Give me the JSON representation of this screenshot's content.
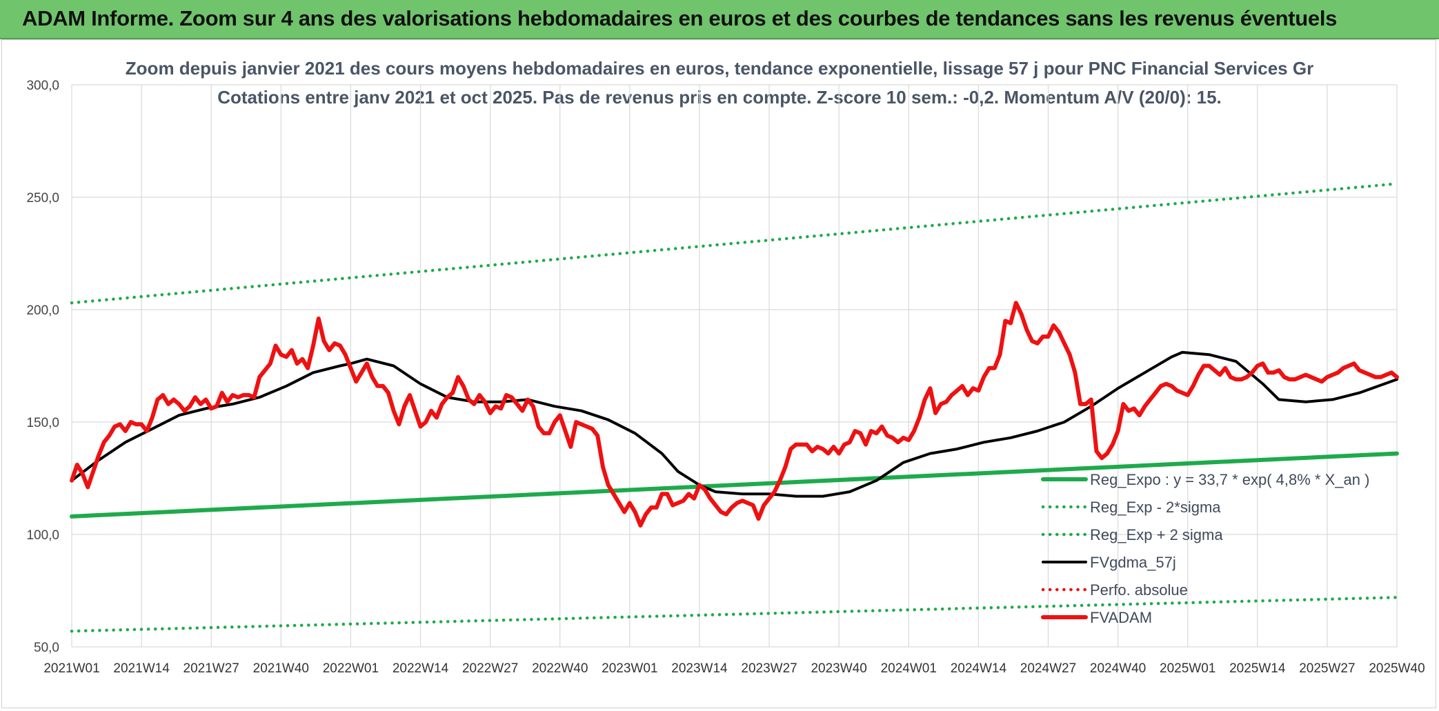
{
  "header": {
    "title": "ADAM Informe. Zoom sur 4 ans des valorisations hebdomadaires en euros et des courbes de tendances sans les revenus éventuels"
  },
  "chart_data": {
    "type": "line",
    "title": "Zoom depuis janvier 2021 des cours moyens hebdomadaires en euros, tendance exponentielle, lissage 57 j pour PNC Financial Services Gr",
    "subtitle": "Cotations entre janv 2021 et oct 2025. Pas de revenus pris en compte. Z-score 10 sem.: -0,2. Momentum A/V (20/0): 15.",
    "xlabel": "",
    "ylabel": "",
    "ylim": [
      50,
      300
    ],
    "yticks": [
      50,
      100,
      150,
      200,
      250,
      300
    ],
    "ytick_labels": [
      "50,0",
      "100,0",
      "150,0",
      "200,0",
      "250,0",
      "300,0"
    ],
    "x_range": [
      0,
      247
    ],
    "x_tick_positions": [
      0,
      13,
      26,
      39,
      52,
      65,
      78,
      91,
      104,
      117,
      130,
      143,
      156,
      169,
      182,
      195,
      208,
      221,
      234,
      247
    ],
    "x_tick_labels": [
      "2021W01",
      "2021W14",
      "2021W27",
      "2021W40",
      "2022W01",
      "2022W14",
      "2022W27",
      "2022W40",
      "2023W01",
      "2023W14",
      "2023W27",
      "2023W40",
      "2024W01",
      "2024W14",
      "2024W27",
      "2024W40",
      "2025W01",
      "2025W14",
      "2025W27",
      "2025W40"
    ],
    "grid": true,
    "legend_position": "bottom-right",
    "colors": {
      "green": "#1eaa4b",
      "black": "#000000",
      "red": "#ee1111"
    },
    "series": [
      {
        "name": "Reg_Expo : y = 33,7 * exp( 4,8% *  X_an )",
        "style": "solid-thick",
        "color": "#1eaa4b",
        "x": [
          0,
          247
        ],
        "values": [
          108,
          136
        ]
      },
      {
        "name": "Reg_Exp - 2*sigma",
        "style": "dotted",
        "color": "#1eaa4b",
        "x": [
          0,
          247
        ],
        "values": [
          57,
          72
        ]
      },
      {
        "name": "Reg_Exp + 2 sigma",
        "style": "dotted",
        "color": "#1eaa4b",
        "x": [
          0,
          247
        ],
        "values": [
          203,
          256
        ]
      },
      {
        "name": "FVgdma_57j",
        "style": "solid",
        "color": "#000000",
        "x": [
          0,
          5,
          10,
          15,
          20,
          25,
          30,
          35,
          40,
          45,
          50,
          52,
          55,
          60,
          65,
          70,
          75,
          80,
          85,
          90,
          95,
          100,
          105,
          110,
          113,
          117,
          120,
          125,
          130,
          135,
          140,
          145,
          150,
          155,
          160,
          165,
          170,
          175,
          180,
          185,
          190,
          195,
          200,
          205,
          207,
          212,
          217,
          222,
          225,
          230,
          235,
          240,
          247
        ],
        "values": [
          124,
          133,
          141,
          147,
          153,
          156,
          158,
          161,
          166,
          172,
          175,
          176,
          178,
          175,
          167,
          161,
          159,
          159,
          160,
          157,
          155,
          151,
          145,
          136,
          128,
          122,
          119,
          118,
          118,
          117,
          117,
          119,
          124,
          132,
          136,
          138,
          141,
          143,
          146,
          150,
          157,
          165,
          172,
          179,
          181,
          180,
          177,
          167,
          160,
          159,
          160,
          163,
          169
        ]
      },
      {
        "name": "Perfo. absolue",
        "style": "dotted",
        "color": "#ee1111",
        "x": [],
        "values": []
      },
      {
        "name": "FVADAM",
        "style": "solid-thick",
        "color": "#ee1111",
        "x": [
          0,
          1,
          2,
          3,
          4,
          5,
          6,
          7,
          8,
          9,
          10,
          11,
          12,
          13,
          14,
          15,
          16,
          17,
          18,
          19,
          20,
          21,
          22,
          23,
          24,
          25,
          26,
          27,
          28,
          29,
          30,
          31,
          32,
          33,
          34,
          35,
          36,
          37,
          38,
          39,
          40,
          41,
          42,
          43,
          44,
          45,
          46,
          47,
          48,
          49,
          50,
          51,
          52,
          53,
          54,
          55,
          56,
          57,
          58,
          59,
          60,
          61,
          62,
          63,
          64,
          65,
          66,
          67,
          68,
          69,
          70,
          71,
          72,
          73,
          74,
          75,
          76,
          77,
          78,
          79,
          80,
          81,
          82,
          83,
          84,
          85,
          86,
          87,
          88,
          89,
          90,
          91,
          92,
          93,
          94,
          95,
          96,
          97,
          98,
          99,
          100,
          101,
          102,
          103,
          104,
          105,
          106,
          107,
          108,
          109,
          110,
          111,
          112,
          113,
          114,
          115,
          116,
          117,
          118,
          119,
          120,
          121,
          122,
          123,
          124,
          125,
          126,
          127,
          128,
          129,
          130,
          131,
          132,
          133,
          134,
          135,
          136,
          137,
          138,
          139,
          140,
          141,
          142,
          143,
          144,
          145,
          146,
          147,
          148,
          149,
          150,
          151,
          152,
          153,
          154,
          155,
          156,
          157,
          158,
          159,
          160,
          161,
          162,
          163,
          164,
          165,
          166,
          167,
          168,
          169,
          170,
          171,
          172,
          173,
          174,
          175,
          176,
          177,
          178,
          179,
          180,
          181,
          182,
          183,
          184,
          185,
          186,
          187,
          188,
          189,
          190,
          191,
          192,
          193,
          194,
          195,
          196,
          197,
          198,
          199,
          200,
          201,
          202,
          203,
          204,
          205,
          206,
          207,
          208,
          209,
          210,
          211,
          212,
          213,
          214,
          215,
          216,
          217,
          218,
          219,
          220,
          221,
          222,
          223,
          224,
          225,
          226,
          227,
          228,
          229,
          230,
          231,
          232,
          233,
          234,
          235,
          236,
          237,
          238,
          239,
          240,
          241,
          242,
          243,
          244,
          245,
          246,
          247
        ],
        "values": [
          124,
          131,
          127,
          121,
          128,
          135,
          141,
          144,
          148,
          149,
          146,
          150,
          149,
          149,
          146,
          152,
          160,
          162,
          158,
          160,
          158,
          155,
          157,
          161,
          158,
          160,
          156,
          157,
          163,
          159,
          162,
          161,
          162,
          162,
          161,
          170,
          173,
          176,
          184,
          180,
          179,
          182,
          176,
          178,
          174,
          184,
          196,
          186,
          182,
          185,
          184,
          180,
          174,
          168,
          172,
          176,
          170,
          166,
          166,
          163,
          155,
          149,
          157,
          162,
          155,
          148,
          150,
          155,
          152,
          158,
          161,
          163,
          170,
          166,
          160,
          158,
          162,
          159,
          154,
          157,
          156,
          162,
          161,
          158,
          155,
          160,
          157,
          148,
          145,
          145,
          150,
          153,
          146,
          139,
          150,
          149,
          148,
          147,
          144,
          130,
          122,
          118,
          114,
          110,
          114,
          110,
          104,
          109,
          112,
          112,
          118,
          118,
          113,
          114,
          115,
          118,
          116,
          122,
          120,
          116,
          113,
          110,
          109,
          112,
          114,
          115,
          114,
          113,
          107,
          113,
          116,
          119,
          124,
          130,
          138,
          140,
          140,
          140,
          137,
          139,
          138,
          136,
          139,
          136,
          140,
          141,
          146,
          145,
          140,
          146,
          145,
          148,
          144,
          143,
          141,
          143,
          142,
          146,
          152,
          160,
          165,
          154,
          158,
          159,
          162,
          164,
          166,
          162,
          165,
          164,
          170,
          174,
          174,
          180,
          195,
          194,
          203,
          198,
          191,
          186,
          185,
          188,
          188,
          193,
          190,
          185,
          180,
          172,
          158,
          158,
          160,
          137,
          134,
          136,
          140,
          146,
          158,
          155,
          156,
          153,
          157,
          160,
          163,
          166,
          167,
          166,
          164,
          163,
          162,
          166,
          171,
          175,
          175,
          173,
          171,
          174,
          170,
          169,
          169,
          170,
          172,
          175,
          176,
          172,
          172,
          173,
          170,
          169,
          169,
          170,
          171,
          170,
          169,
          168,
          170,
          171,
          172,
          174,
          175,
          176,
          173,
          172,
          171,
          170,
          170,
          171,
          172,
          170
        ]
      }
    ]
  }
}
